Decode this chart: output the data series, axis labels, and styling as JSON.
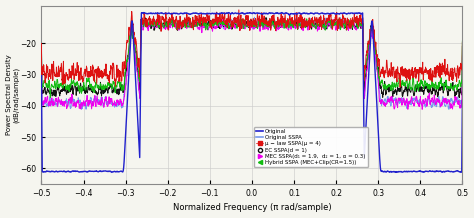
{
  "xlabel": "Normalized Frequency (π rad/sample)",
  "ylabel": "Power Spectral Density\n(dB/rad/sample)",
  "xlim": [
    -0.5,
    0.5
  ],
  "ylim": [
    -65,
    -8
  ],
  "yticks": [
    -60,
    -50,
    -40,
    -30,
    -20
  ],
  "xticks": [
    -0.5,
    -0.4,
    -0.3,
    -0.2,
    -0.1,
    0,
    0.1,
    0.2,
    0.3,
    0.4,
    0.5
  ],
  "bg_color": "#f5f5ef",
  "grid_color": "#cccccc",
  "legend_labels": [
    "Original",
    "Original SSPA",
    "μ − law SSPA(μ = 4)",
    "EC SSPA(d = 1)",
    "MEC SSPA(d₁ = 1.9,  d₂ = 1, α = 0.3)",
    "Hybrid SSPA (MEC+Clip(CR=1.5))"
  ],
  "legend_colors": [
    "#2020cc",
    "#7799ee",
    "#dd1111",
    "#111111",
    "#ee00ee",
    "#11bb11"
  ],
  "band_low": -0.285,
  "band_high": 0.285,
  "inband_orig": -10.5,
  "inband_sspa_orig": -13.5,
  "inband_mu": -13.0,
  "inband_ec": -14.0,
  "inband_mec": -14.5,
  "inband_hybrid": -14.0,
  "outband_orig": -61.0,
  "outband_sspa_orig": -39.0,
  "outband_mu": -29.5,
  "outband_ec": -35.0,
  "outband_mec": -39.0,
  "outband_hybrid": -33.5,
  "seed": 123
}
